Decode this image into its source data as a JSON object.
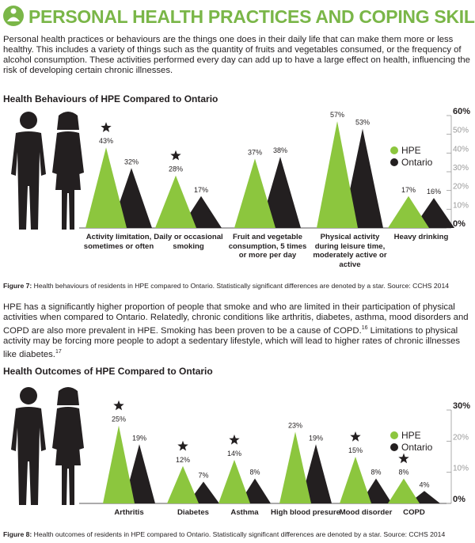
{
  "header": {
    "title": "PERSONAL HEALTH PRACTICES AND COPING SKILLS"
  },
  "intro": "Personal health practices or behaviours are the things one does in their daily life that can make them more or less healthy. This includes a variety of things such as the quantity of fruits and vegetables consumed, or the frequency of alcohol consumption. These activities performed every day can add up to have a large effect on health, influencing the risk of developing certain chronic illnesses.",
  "body": {
    "parts": [
      "HPE has a significantly higher proportion of people that smoke and who are limited in their participation of physical activities when compared to Ontario. Relatedly, chronic conditions like arthritis, diabetes, asthma, mood disorders and COPD are also more prevalent in HPE. Smoking has been proven to be a cause of COPD.",
      "16",
      " Limitations to physical activity may be forcing more people to adopt a sedentary lifestyle, which will lead to higher rates of chronic illnesses like diabetes.",
      "17"
    ]
  },
  "chart_data": [
    {
      "type": "bar",
      "title": "Health Behaviours of HPE Compared to Ontario",
      "categories": [
        "Activity limitation, sometimes or often",
        "Daily or occasional smoking",
        "Fruit and vegetable consumption, 5 times or more per day",
        "Physical activity during leisure time, moderately active or active",
        "Heavy drinking"
      ],
      "series": [
        {
          "name": "HPE",
          "color": "#8cc63e",
          "values": [
            43,
            28,
            37,
            57,
            17
          ],
          "value_labels": [
            "43%",
            "28%",
            "37%",
            "57%",
            "17%"
          ]
        },
        {
          "name": "Ontario",
          "color": "#231f20",
          "values": [
            32,
            17,
            38,
            53,
            16
          ],
          "value_labels": [
            "32%",
            "17%",
            "38%",
            "53%",
            "16%"
          ]
        }
      ],
      "significant": [
        true,
        true,
        false,
        false,
        false
      ],
      "ylim": [
        0,
        60
      ],
      "yticks": [
        {
          "value": 0,
          "label": "0%"
        },
        {
          "value": 10,
          "label": "10%"
        },
        {
          "value": 20,
          "label": "20%"
        },
        {
          "value": 30,
          "label": "30%"
        },
        {
          "value": 40,
          "label": "40%"
        },
        {
          "value": 50,
          "label": "50%"
        },
        {
          "value": 60,
          "label": "60%"
        }
      ],
      "legend": "right",
      "caption": {
        "label": "Figure 7:",
        "text": " Health behaviours of residents in HPE compared to Ontario. Statistically significant differences are denoted by a star. Source: CCHS 2014"
      }
    },
    {
      "type": "bar",
      "title": "Health Outcomes of HPE Compared to Ontario",
      "categories": [
        "Arthritis",
        "Diabetes",
        "Asthma",
        "High blood presure",
        "Mood disorder",
        "COPD"
      ],
      "series": [
        {
          "name": "HPE",
          "color": "#8cc63e",
          "values": [
            25,
            12,
            14,
            23,
            15,
            8
          ],
          "value_labels": [
            "25%",
            "12%",
            "14%",
            "23%",
            "15%",
            "8%"
          ]
        },
        {
          "name": "Ontario",
          "color": "#231f20",
          "values": [
            19,
            7,
            8,
            19,
            8,
            4
          ],
          "value_labels": [
            "19%",
            "7%",
            "8%",
            "19%",
            "8%",
            "4%"
          ]
        }
      ],
      "significant": [
        true,
        true,
        true,
        false,
        true,
        true
      ],
      "ylim": [
        0,
        30
      ],
      "yticks": [
        {
          "value": 0,
          "label": "0%"
        },
        {
          "value": 10,
          "label": "10%"
        },
        {
          "value": 20,
          "label": "20%"
        },
        {
          "value": 30,
          "label": "30%"
        }
      ],
      "legend": "right",
      "caption": {
        "label": "Figure 8:",
        "text": " Health outcomes of residents in HPE compared to Ontario. Statistically significant differences are denoted by a star. Source: CCHS 2014"
      }
    }
  ]
}
